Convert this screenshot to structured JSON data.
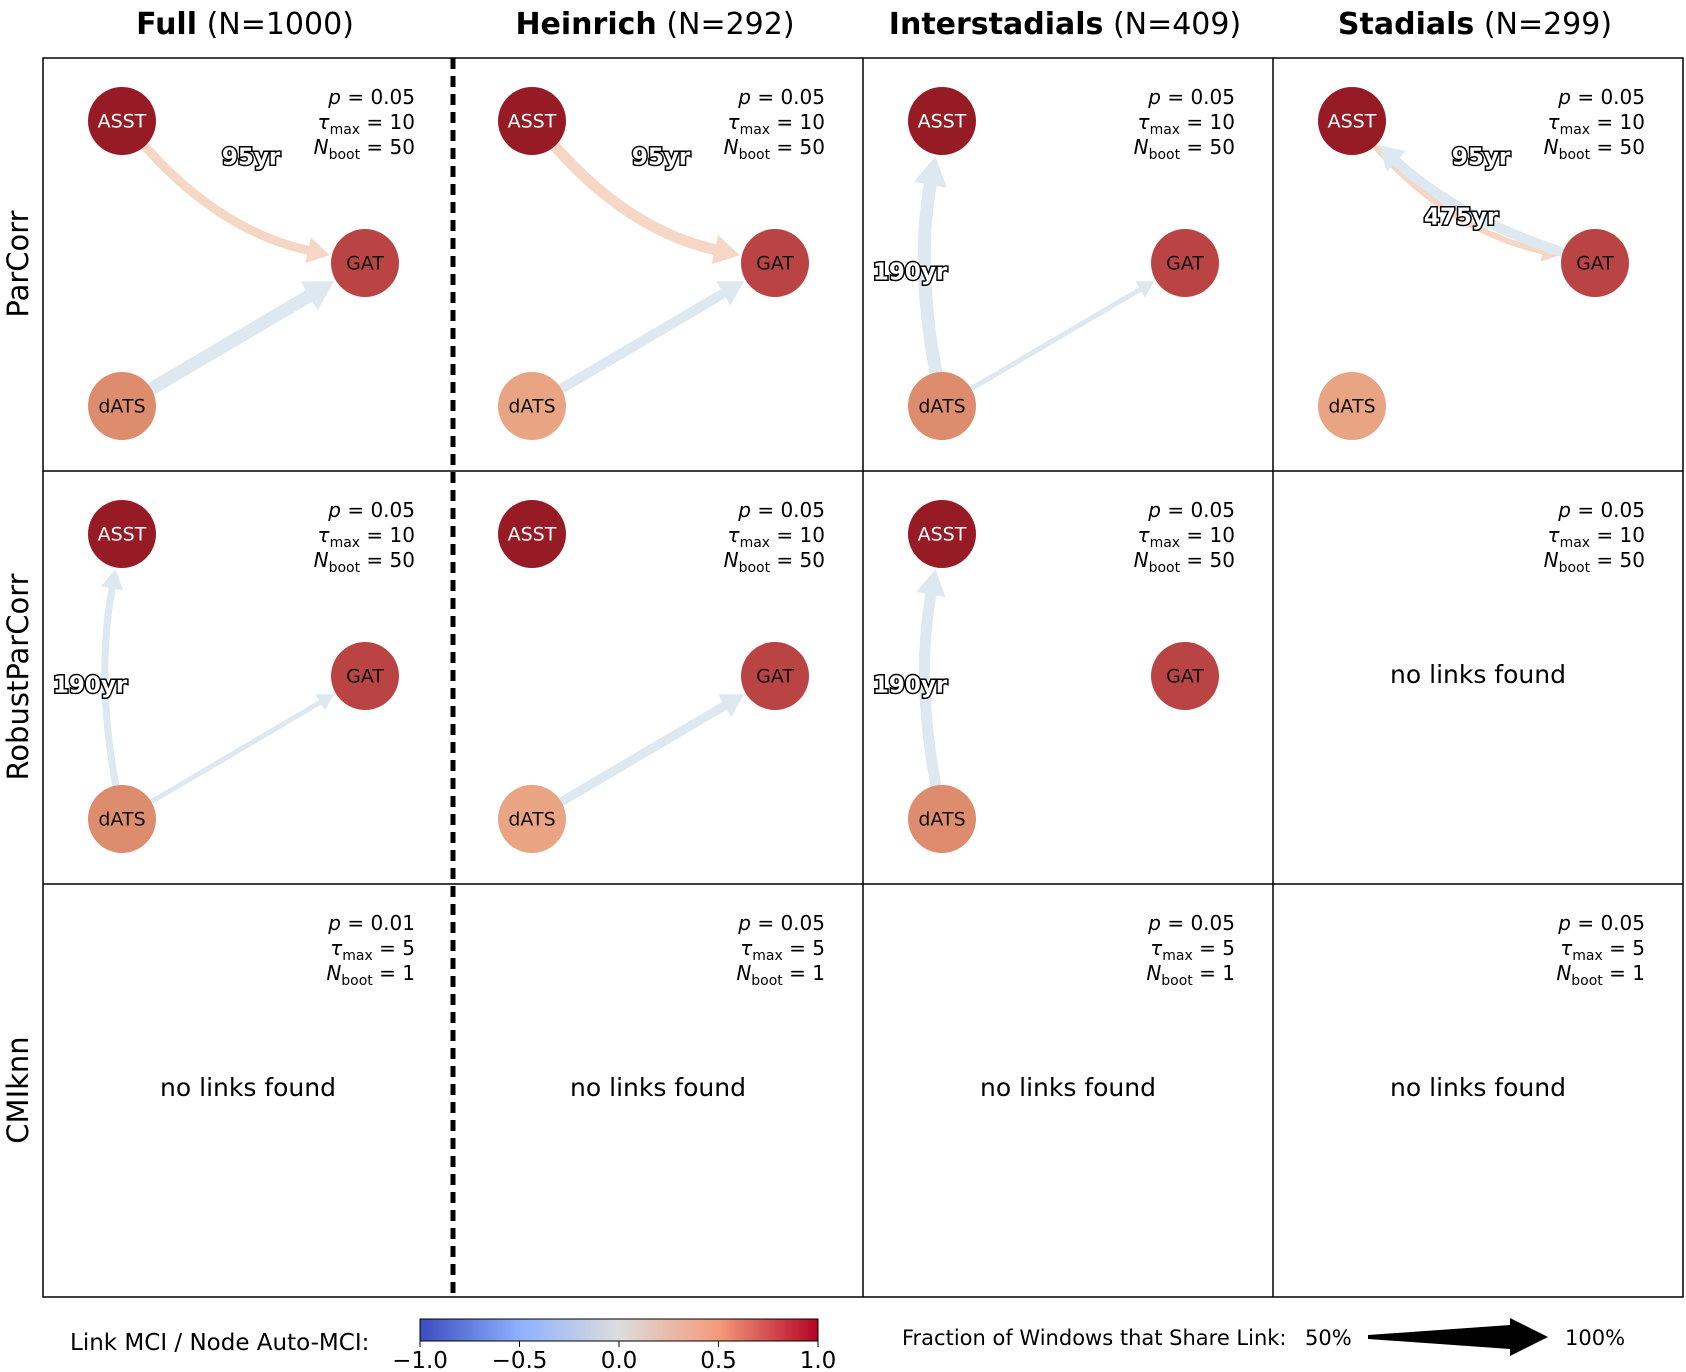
{
  "columns": [
    {
      "name": "Full",
      "n": "(N=1000)"
    },
    {
      "name": "Heinrich",
      "n": "(N=292)"
    },
    {
      "name": "Interstadials",
      "n": "(N=409)"
    },
    {
      "name": "Stadials",
      "n": "(N=299)"
    }
  ],
  "rows": [
    "ParCorr",
    "RobustParCorr",
    "CMIknn"
  ],
  "param_labels": {
    "p": "p",
    "tau": "τ",
    "tau_sub": "max",
    "nboot": "N",
    "nboot_sub": "boot"
  },
  "nodes": [
    "ASST",
    "GAT",
    "dATS"
  ],
  "no_links_text": "no links found",
  "node_colors": {
    "ASST_dark": "#971b25",
    "GAT": "#ba4443",
    "dATS_medium": "#dd8c6e",
    "dATS_light": "#e9a484",
    "link_blue": "#dde8f1",
    "link_orange": "#f6d7c5"
  },
  "panels": [
    {
      "row": 0,
      "col": 0,
      "params": {
        "p": "0.05",
        "tau": "10",
        "nboot": "50"
      },
      "has_links": true,
      "node_fill": {
        "ASST": "#971b25",
        "GAT": "#ba4443",
        "dATS": "#dd8c6e"
      },
      "links": [
        {
          "from": "ASST",
          "to": "GAT",
          "lag": "95yr",
          "style": "orange",
          "width": 9
        },
        {
          "from": "dATS",
          "to": "GAT",
          "lag": "",
          "style": "blue",
          "width": 13
        }
      ]
    },
    {
      "row": 0,
      "col": 1,
      "params": {
        "p": "0.05",
        "tau": "10",
        "nboot": "50"
      },
      "has_links": true,
      "node_fill": {
        "ASST": "#971b25",
        "GAT": "#ba4443",
        "dATS": "#e9a484"
      },
      "links": [
        {
          "from": "ASST",
          "to": "GAT",
          "lag": "95yr",
          "style": "orange",
          "width": 11
        },
        {
          "from": "dATS",
          "to": "GAT",
          "lag": "",
          "style": "blue",
          "width": 10
        }
      ]
    },
    {
      "row": 0,
      "col": 2,
      "params": {
        "p": "0.05",
        "tau": "10",
        "nboot": "50"
      },
      "has_links": true,
      "node_fill": {
        "ASST": "#971b25",
        "GAT": "#ba4443",
        "dATS": "#dd8c6e"
      },
      "links": [
        {
          "from": "dATS",
          "to": "ASST",
          "lag": "190yr",
          "style": "blue",
          "width": 13
        },
        {
          "from": "dATS",
          "to": "GAT",
          "lag": "",
          "style": "blue",
          "width": 5
        }
      ]
    },
    {
      "row": 0,
      "col": 3,
      "params": {
        "p": "0.05",
        "tau": "10",
        "nboot": "50"
      },
      "has_links": true,
      "node_fill": {
        "ASST": "#971b25",
        "GAT": "#ba4443",
        "dATS": "#e9a484"
      },
      "links": [
        {
          "from": "ASST",
          "to": "GAT",
          "lag": "95yr",
          "style": "orange",
          "width": 6
        },
        {
          "from": "GAT",
          "to": "ASST",
          "lag": "475yr",
          "style": "blue",
          "width": 10
        }
      ]
    },
    {
      "row": 1,
      "col": 0,
      "params": {
        "p": "0.05",
        "tau": "10",
        "nboot": "50"
      },
      "has_links": true,
      "node_fill": {
        "ASST": "#971b25",
        "GAT": "#ba4443",
        "dATS": "#dd8c6e"
      },
      "links": [
        {
          "from": "dATS",
          "to": "ASST",
          "lag": "190yr",
          "style": "blue",
          "width": 7
        },
        {
          "from": "dATS",
          "to": "GAT",
          "lag": "",
          "style": "blue",
          "width": 5
        }
      ]
    },
    {
      "row": 1,
      "col": 1,
      "params": {
        "p": "0.05",
        "tau": "10",
        "nboot": "50"
      },
      "has_links": true,
      "node_fill": {
        "ASST": "#971b25",
        "GAT": "#ba4443",
        "dATS": "#e9a484"
      },
      "links": [
        {
          "from": "dATS",
          "to": "GAT",
          "lag": "",
          "style": "blue",
          "width": 9
        }
      ]
    },
    {
      "row": 1,
      "col": 2,
      "params": {
        "p": "0.05",
        "tau": "10",
        "nboot": "50"
      },
      "has_links": true,
      "node_fill": {
        "ASST": "#971b25",
        "GAT": "#ba4443",
        "dATS": "#dd8c6e"
      },
      "links": [
        {
          "from": "dATS",
          "to": "ASST",
          "lag": "190yr",
          "style": "blue",
          "width": 11
        }
      ]
    },
    {
      "row": 1,
      "col": 3,
      "params": {
        "p": "0.05",
        "tau": "10",
        "nboot": "50"
      },
      "has_links": false,
      "node_fill": {},
      "links": []
    },
    {
      "row": 2,
      "col": 0,
      "params": {
        "p": "0.01",
        "tau": "5",
        "nboot": "1"
      },
      "has_links": false,
      "node_fill": {},
      "links": []
    },
    {
      "row": 2,
      "col": 1,
      "params": {
        "p": "0.05",
        "tau": "5",
        "nboot": "1"
      },
      "has_links": false,
      "node_fill": {},
      "links": []
    },
    {
      "row": 2,
      "col": 2,
      "params": {
        "p": "0.05",
        "tau": "5",
        "nboot": "1"
      },
      "has_links": false,
      "node_fill": {},
      "links": []
    },
    {
      "row": 2,
      "col": 3,
      "params": {
        "p": "0.05",
        "tau": "5",
        "nboot": "1"
      },
      "has_links": false,
      "node_fill": {},
      "links": []
    }
  ],
  "colorbar": {
    "label": "Link MCI / Node Auto-MCI:",
    "ticks": [
      "−1.0",
      "−0.5",
      "0.0",
      "0.5",
      "1.0"
    ],
    "tick_values": [
      -1.0,
      -0.5,
      0.0,
      0.5,
      1.0
    ],
    "range": [
      -1.0,
      1.0
    ],
    "colors": [
      "#3b4cc0",
      "#8db0fe",
      "#dddddd",
      "#f49a7b",
      "#b40426"
    ]
  },
  "width_legend": {
    "label": "Fraction of Windows that Share Link:",
    "min_label": "50%",
    "max_label": "100%"
  }
}
